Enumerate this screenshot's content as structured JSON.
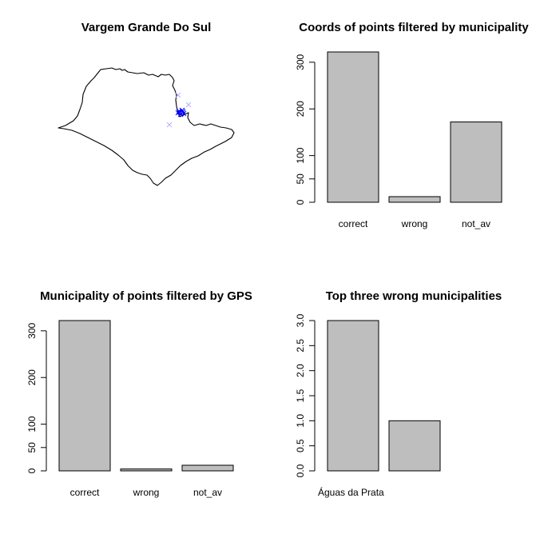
{
  "colors": {
    "bar_fill": "#bebebe",
    "bar_stroke": "#000000",
    "point_main": "#0000ff",
    "point_light": "#b3b3ff"
  },
  "map_panel": {
    "title": "Vargem Grande Do Sul",
    "points_main_icon": "blue-cross-marker",
    "points_light_icon": "light-blue-cross-marker"
  },
  "chart_data": [
    {
      "type": "bar",
      "title": "Coords of points filtered by municipality",
      "categories": [
        "correct",
        "wrong",
        "not_av"
      ],
      "values": [
        322,
        12,
        172
      ],
      "yticks": [
        0,
        50,
        100,
        200,
        300
      ],
      "ylim": [
        0,
        322
      ],
      "xlabel": "",
      "ylabel": "",
      "grid": false
    },
    {
      "type": "bar",
      "title": "Municipality of points filtered by GPS",
      "categories": [
        "correct",
        "wrong",
        "not_av"
      ],
      "values": [
        322,
        4,
        12
      ],
      "yticks": [
        0,
        50,
        100,
        200,
        300
      ],
      "ylim": [
        0,
        322
      ],
      "xlabel": "",
      "ylabel": "",
      "grid": false
    },
    {
      "type": "bar",
      "title": "Top three wrong municipalities",
      "categories": [
        "Águas da Prata",
        ""
      ],
      "values": [
        3,
        1
      ],
      "yticks": [
        "0.0",
        "0.5",
        "1.0",
        "1.5",
        "2.0",
        "2.5",
        "3.0"
      ],
      "ylim": [
        0,
        3
      ],
      "xlabel": "",
      "ylabel": "",
      "grid": false
    }
  ]
}
